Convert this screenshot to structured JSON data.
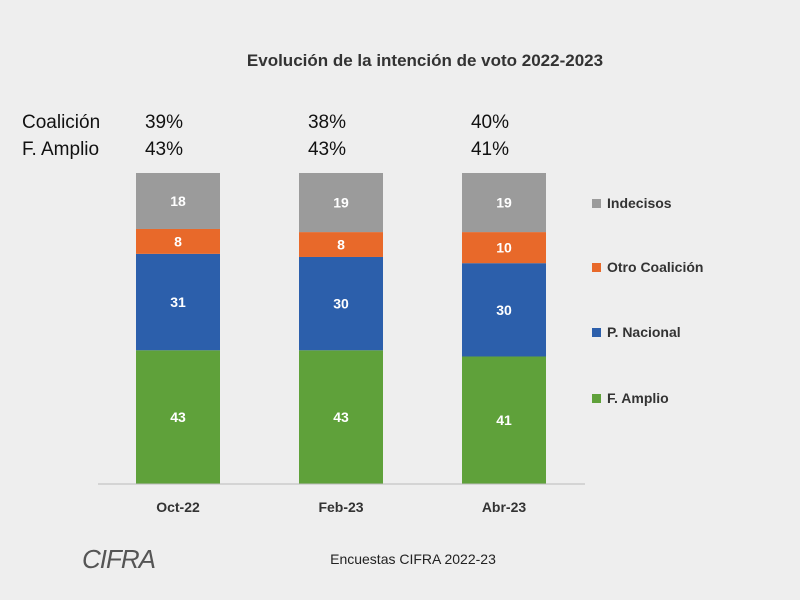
{
  "chart_data": {
    "type": "bar",
    "stacked": true,
    "title": "Evolución de la intención de voto 2022-2023",
    "categories": [
      "Oct-22",
      "Feb-23",
      "Abr-23"
    ],
    "series": [
      {
        "name": "F. Amplio",
        "values": [
          43,
          43,
          41
        ],
        "color": "#5fa13a"
      },
      {
        "name": "P. Nacional",
        "values": [
          31,
          30,
          30
        ],
        "color": "#2c5fab"
      },
      {
        "name": "Otro Coalición",
        "values": [
          8,
          8,
          10
        ],
        "color": "#e8692a"
      },
      {
        "name": "Indecisos",
        "values": [
          18,
          19,
          19
        ],
        "color": "#9b9b9b"
      }
    ],
    "legend_order": [
      "Indecisos",
      "Otro Coalición",
      "P. Nacional",
      "F. Amplio"
    ],
    "legend_position": "right",
    "summary": [
      {
        "label": "Coalición",
        "values": [
          "39%",
          "38%",
          "40%"
        ]
      },
      {
        "label": "F. Amplio",
        "values": [
          "43%",
          "43%",
          "41%"
        ]
      }
    ],
    "ylim": [
      0,
      100
    ],
    "grid": false
  },
  "footer": {
    "source": "Encuestas CIFRA 2022-23",
    "logo_text": "CIFRA"
  }
}
